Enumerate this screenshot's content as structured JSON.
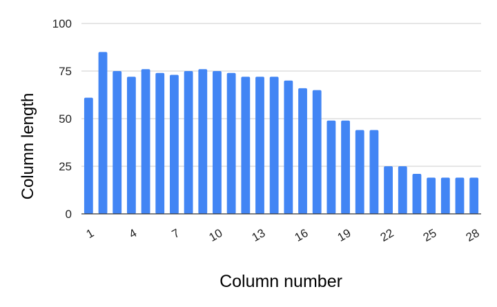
{
  "chart_data": {
    "type": "bar",
    "title": "",
    "xlabel": "Column number",
    "ylabel": "Column length",
    "x": [
      1,
      2,
      3,
      4,
      5,
      6,
      7,
      8,
      9,
      10,
      11,
      12,
      13,
      14,
      15,
      16,
      17,
      18,
      19,
      20,
      21,
      22,
      23,
      24,
      25,
      26,
      27,
      28
    ],
    "values": [
      61,
      85,
      75,
      72,
      76,
      74,
      73,
      75,
      76,
      75,
      74,
      72,
      72,
      72,
      70,
      66,
      65,
      49,
      49,
      44,
      44,
      25,
      25,
      21,
      19,
      19,
      19,
      19
    ],
    "x_tick_labels": [
      "1",
      "4",
      "7",
      "10",
      "13",
      "16",
      "19",
      "22",
      "25",
      "28"
    ],
    "y_ticks": [
      "0",
      "25",
      "50",
      "75",
      "100"
    ],
    "ylim": [
      0,
      100
    ],
    "grid": true,
    "legend": "none",
    "bar_color": "#4285f4",
    "grid_color": "#cccccc",
    "axis_color": "#333333"
  }
}
